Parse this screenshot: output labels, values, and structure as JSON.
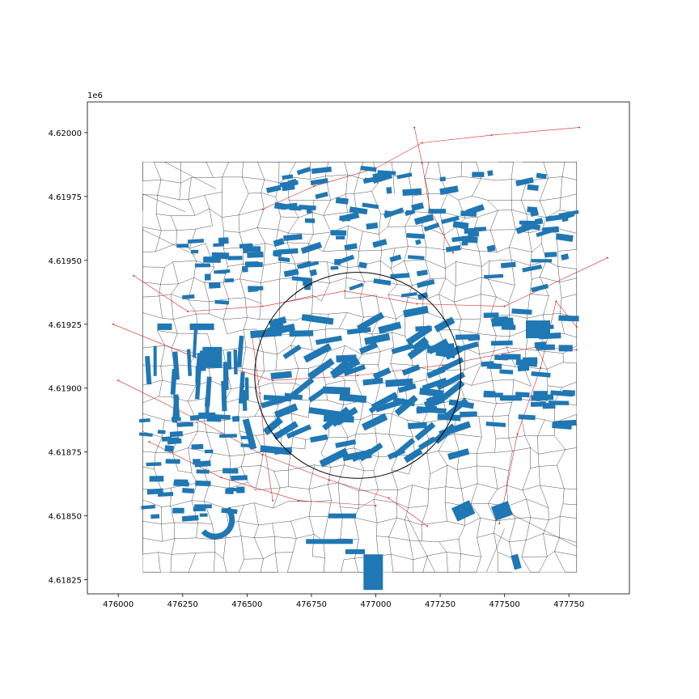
{
  "chart_data": {
    "type": "map",
    "title": "",
    "xlabel": "",
    "ylabel": "",
    "y_offset_label": "1e6",
    "xlim": [
      475880,
      477985
    ],
    "ylim": [
      4618195,
      4620120
    ],
    "x_ticks": [
      476000,
      476250,
      476500,
      476750,
      477000,
      477250,
      477500,
      477750
    ],
    "x_tick_labels": [
      "476000",
      "476250",
      "476500",
      "476750",
      "477000",
      "477250",
      "477500",
      "477750"
    ],
    "y_ticks": [
      4618250,
      4618500,
      4618750,
      4619000,
      4619250,
      4619500,
      4619750,
      4620000
    ],
    "y_tick_labels": [
      "4.61825",
      "4.61850",
      "4.61875",
      "4.61900",
      "4.61925",
      "4.61950",
      "4.61975",
      "4.62000"
    ],
    "extent_box": {
      "x": [
        476095,
        477780
      ],
      "y": [
        4618280,
        4619885
      ]
    },
    "circle": {
      "center": [
        476930,
        4619050
      ],
      "radius": 400
    },
    "colors": {
      "buildings": "#1f77b4",
      "tessellation": "#000000",
      "streets": "#d62728",
      "circle": "#000000"
    },
    "layers": [
      "buildings",
      "tessellation",
      "streets",
      "buffer-circle"
    ]
  }
}
